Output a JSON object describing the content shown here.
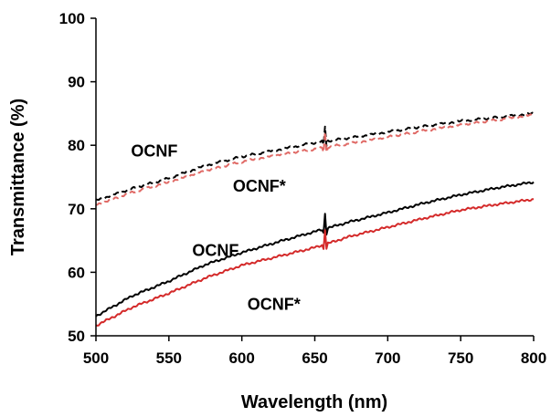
{
  "chart_data": {
    "type": "line",
    "title": "",
    "xlabel": "Wavelength (nm)",
    "ylabel": "Transmittance (%)",
    "xlim": [
      500,
      800
    ],
    "ylim": [
      50,
      100
    ],
    "xticks": [
      500,
      550,
      600,
      650,
      700,
      750,
      800
    ],
    "yticks": [
      50,
      60,
      70,
      80,
      90,
      100
    ],
    "grid": false,
    "legend": "none",
    "series": [
      {
        "color": "#000000",
        "dash": true,
        "spike_at": 657,
        "x": [
          500,
          525,
          550,
          575,
          600,
          625,
          650,
          675,
          700,
          725,
          750,
          775,
          800
        ],
        "y": [
          71.3,
          73.2,
          74.8,
          76.8,
          78.2,
          79.3,
          80.4,
          81.2,
          82.1,
          83.0,
          83.8,
          84.4,
          85.0
        ]
      },
      {
        "color": "#e06a66",
        "dash": true,
        "spike_at": 657,
        "x": [
          500,
          525,
          550,
          575,
          600,
          625,
          650,
          675,
          700,
          725,
          750,
          775,
          800
        ],
        "y": [
          70.6,
          72.6,
          74.2,
          76.0,
          77.4,
          78.5,
          79.4,
          80.3,
          81.3,
          82.3,
          83.2,
          84.0,
          84.8
        ]
      },
      {
        "color": "#000000",
        "dash": false,
        "spike_at": 657,
        "x": [
          500,
          525,
          550,
          575,
          600,
          625,
          650,
          675,
          700,
          725,
          750,
          775,
          800
        ],
        "y": [
          53.1,
          56.3,
          58.6,
          61.2,
          63.1,
          64.8,
          66.4,
          68.0,
          69.4,
          70.9,
          72.2,
          73.3,
          74.2
        ]
      },
      {
        "color": "#d42a2a",
        "dash": false,
        "spike_at": 657,
        "x": [
          500,
          525,
          550,
          575,
          600,
          625,
          650,
          675,
          700,
          725,
          750,
          775,
          800
        ],
        "y": [
          51.6,
          54.5,
          56.7,
          59.1,
          61.1,
          62.5,
          63.9,
          65.7,
          67.1,
          68.5,
          69.8,
          70.7,
          71.5
        ]
      }
    ],
    "annotations": [
      {
        "text": "OCNF",
        "x": 540,
        "y": 78.2
      },
      {
        "text": "OCNF*",
        "x": 612,
        "y": 72.7
      },
      {
        "text": "OCNF",
        "x": 582,
        "y": 62.6
      },
      {
        "text": "OCNF*",
        "x": 622,
        "y": 54.1
      }
    ]
  }
}
